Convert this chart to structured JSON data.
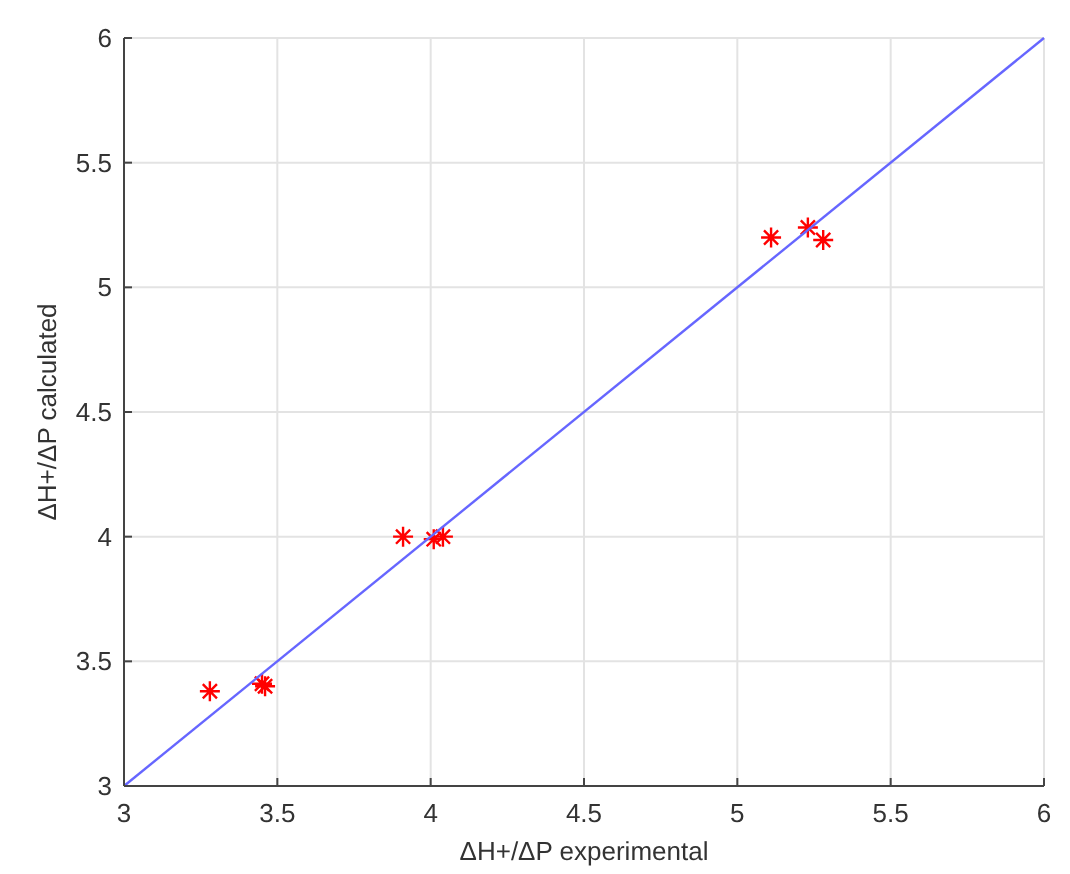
{
  "chart_data": {
    "type": "scatter",
    "xlabel": "ΔH+/ΔP experimental",
    "ylabel": "ΔH+/ΔP calculated",
    "xlim": [
      3,
      6
    ],
    "ylim": [
      3,
      6
    ],
    "xticks": [
      3,
      3.5,
      4,
      4.5,
      5,
      5.5,
      6
    ],
    "yticks": [
      3,
      3.5,
      4,
      4.5,
      5,
      5.5,
      6
    ],
    "grid": true,
    "series": [
      {
        "color": "#ff0000",
        "marker": "cross",
        "x": [
          3.28,
          3.45,
          3.46,
          3.91,
          4.01,
          4.04,
          5.11,
          5.23,
          5.28
        ],
        "values": [
          3.38,
          3.41,
          3.4,
          4.0,
          3.99,
          4.0,
          5.2,
          5.24,
          5.19
        ]
      },
      {
        "type": "line",
        "color": "#6666ff",
        "marker": "none",
        "x": [
          3,
          6
        ],
        "values": [
          3,
          6
        ]
      }
    ]
  }
}
